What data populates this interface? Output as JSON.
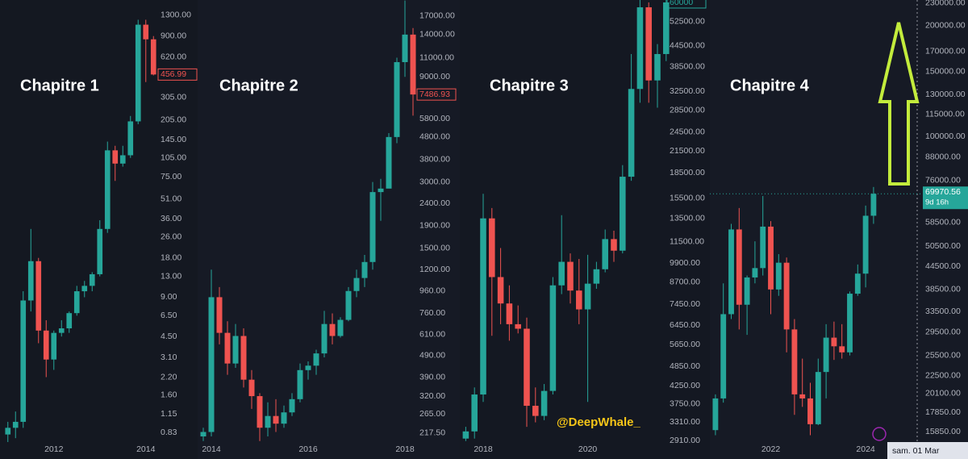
{
  "chart_data": [
    {
      "type": "candlestick",
      "title": "Chapitre 1",
      "log_scale": true,
      "up_color": "#26a69a",
      "down_color": "#ef5350",
      "categories": [
        null,
        null,
        null,
        null,
        null,
        null,
        "2012",
        null,
        null,
        null,
        null,
        null,
        null,
        null,
        null,
        null,
        null,
        null,
        "2014",
        null
      ],
      "open": [
        0.8,
        0.9,
        1.0,
        8.5,
        17,
        5,
        3,
        4.8,
        5.2,
        6.8,
        10,
        11,
        13.5,
        30,
        120,
        95,
        110,
        200,
        1100,
        850
      ],
      "high": [
        1.0,
        1.2,
        10,
        30,
        18,
        6,
        5,
        6,
        7,
        11,
        12,
        14,
        35,
        140,
        130,
        130,
        220,
        1200,
        1200,
        900
      ],
      "low": [
        0.7,
        0.75,
        0.9,
        7,
        4,
        2.2,
        2.5,
        4.5,
        4.8,
        6.5,
        9,
        10,
        13,
        28,
        70,
        90,
        105,
        190,
        400,
        450
      ],
      "close": [
        0.9,
        1.0,
        8.5,
        17,
        5,
        3,
        4.8,
        5.2,
        6.8,
        10,
        11,
        13.5,
        30,
        120,
        95,
        110,
        200,
        1100,
        850,
        456.99
      ],
      "ylim": [
        0.7,
        1700
      ],
      "yticks": [
        {
          "value": 1300,
          "label": "1300.00"
        },
        {
          "value": 900,
          "label": "900.00"
        },
        {
          "value": 620,
          "label": "620.00"
        },
        {
          "value": 305,
          "label": "305.00"
        },
        {
          "value": 205,
          "label": "205.00"
        },
        {
          "value": 145,
          "label": "145.00"
        },
        {
          "value": 105,
          "label": "105.00"
        },
        {
          "value": 75,
          "label": "75.00"
        },
        {
          "value": 51,
          "label": "51.00"
        },
        {
          "value": 36,
          "label": "36.00"
        },
        {
          "value": 26,
          "label": "26.00"
        },
        {
          "value": 18,
          "label": "18.00"
        },
        {
          "value": 13,
          "label": "13.00"
        },
        {
          "value": 9,
          "label": "9.00"
        },
        {
          "value": 6.5,
          "label": "6.50"
        },
        {
          "value": 4.5,
          "label": "4.50"
        },
        {
          "value": 3.1,
          "label": "3.10"
        },
        {
          "value": 2.2,
          "label": "2.20"
        },
        {
          "value": 1.6,
          "label": "1.60"
        },
        {
          "value": 1.15,
          "label": "1.15"
        },
        {
          "value": 0.83,
          "label": "0.83"
        }
      ]
    },
    {
      "type": "candlestick",
      "title": "Chapitre 2",
      "log_scale": true,
      "up_color": "#26a69a",
      "down_color": "#ef5350",
      "categories": [
        null,
        "2014",
        null,
        null,
        null,
        null,
        null,
        null,
        null,
        null,
        null,
        null,
        null,
        "2016",
        null,
        null,
        null,
        null,
        null,
        null,
        null,
        null,
        null,
        null,
        null,
        "2018",
        null
      ],
      "open": [
        210,
        220,
        900,
        620,
        450,
        600,
        380,
        320,
        230,
        260,
        240,
        270,
        310,
        420,
        440,
        500,
        680,
        600,
        710,
        960,
        1100,
        1300,
        2700,
        2800,
        4800,
        10500,
        14000
      ],
      "high": [
        230,
        1200,
        1000,
        700,
        680,
        650,
        420,
        330,
        300,
        310,
        290,
        330,
        450,
        460,
        520,
        780,
        760,
        730,
        1000,
        1200,
        1400,
        3000,
        3100,
        5000,
        11000,
        20000,
        15000
      ],
      "low": [
        200,
        210,
        550,
        400,
        430,
        350,
        280,
        200,
        210,
        220,
        230,
        260,
        300,
        380,
        400,
        480,
        550,
        590,
        700,
        900,
        1000,
        1200,
        2000,
        2900,
        4500,
        9000,
        6000
      ],
      "close": [
        220,
        900,
        620,
        450,
        600,
        380,
        320,
        230,
        260,
        240,
        270,
        310,
        420,
        440,
        500,
        680,
        600,
        710,
        960,
        1100,
        1300,
        2700,
        2800,
        4800,
        10500,
        14000,
        7486.93
      ],
      "ylim": [
        198,
        20100
      ],
      "yticks": [
        {
          "value": 17000,
          "label": "17000.00"
        },
        {
          "value": 14000,
          "label": "14000.00"
        },
        {
          "value": 11000,
          "label": "11000.00"
        },
        {
          "value": 9000,
          "label": "9000.00"
        },
        {
          "value": 5800,
          "label": "5800.00"
        },
        {
          "value": 4800,
          "label": "4800.00"
        },
        {
          "value": 3800,
          "label": "3800.00"
        },
        {
          "value": 3000,
          "label": "3000.00"
        },
        {
          "value": 2400,
          "label": "2400.00"
        },
        {
          "value": 1900,
          "label": "1900.00"
        },
        {
          "value": 1500,
          "label": "1500.00"
        },
        {
          "value": 1200,
          "label": "1200.00"
        },
        {
          "value": 960,
          "label": "960.00"
        },
        {
          "value": 760,
          "label": "760.00"
        },
        {
          "value": 610,
          "label": "610.00"
        },
        {
          "value": 490,
          "label": "490.00"
        },
        {
          "value": 390,
          "label": "390.00"
        },
        {
          "value": 320,
          "label": "320.00"
        },
        {
          "value": 265,
          "label": "265.00"
        },
        {
          "value": 217.5,
          "label": "217.50"
        }
      ]
    },
    {
      "type": "candlestick",
      "title": "Chapitre 3",
      "log_scale": true,
      "up_color": "#26a69a",
      "down_color": "#ef5350",
      "categories": [
        null,
        null,
        "2018",
        null,
        null,
        null,
        null,
        null,
        null,
        null,
        null,
        null,
        null,
        null,
        "2020",
        null,
        null,
        null,
        null,
        null,
        null,
        null,
        null,
        null
      ],
      "open": [
        2950,
        3100,
        4000,
        13500,
        9000,
        7500,
        6500,
        6300,
        3700,
        3450,
        4100,
        8500,
        10000,
        8200,
        7200,
        8600,
        9500,
        11700,
        10800,
        18000,
        33000,
        58000,
        35000,
        42000
      ],
      "high": [
        3200,
        4200,
        16000,
        14500,
        11000,
        8500,
        7400,
        6800,
        4200,
        4300,
        9000,
        13800,
        10600,
        10200,
        10500,
        10000,
        12500,
        12400,
        19500,
        42000,
        64000,
        60000,
        45000,
        62000
      ],
      "low": [
        2900,
        2950,
        3800,
        6000,
        6500,
        5800,
        6100,
        3200,
        3300,
        3350,
        4000,
        8000,
        7500,
        6500,
        3800,
        8300,
        9300,
        10000,
        10600,
        17500,
        30000,
        30000,
        29000,
        40000
      ],
      "close": [
        3100,
        4000,
        13500,
        9000,
        7500,
        6500,
        6300,
        3700,
        3450,
        4100,
        8500,
        10000,
        8200,
        7200,
        8600,
        9500,
        11700,
        10800,
        18000,
        33000,
        58000,
        35000,
        42000,
        60000
      ],
      "ylim": [
        2880,
        61000
      ],
      "yticks": [
        {
          "value": 52500,
          "label": "52500.00"
        },
        {
          "value": 44500,
          "label": "44500.00"
        },
        {
          "value": 38500,
          "label": "38500.00"
        },
        {
          "value": 32500,
          "label": "32500.00"
        },
        {
          "value": 28500,
          "label": "28500.00"
        },
        {
          "value": 24500,
          "label": "24500.00"
        },
        {
          "value": 21500,
          "label": "21500.00"
        },
        {
          "value": 18500,
          "label": "18500.00"
        },
        {
          "value": 15500,
          "label": "15500.00"
        },
        {
          "value": 13500,
          "label": "13500.00"
        },
        {
          "value": 11500,
          "label": "11500.00"
        },
        {
          "value": 9900,
          "label": "9900.00"
        },
        {
          "value": 8700,
          "label": "8700.00"
        },
        {
          "value": 7450,
          "label": "7450.00"
        },
        {
          "value": 6450,
          "label": "6450.00"
        },
        {
          "value": 5650,
          "label": "5650.00"
        },
        {
          "value": 4850,
          "label": "4850.00"
        },
        {
          "value": 4250,
          "label": "4250.00"
        },
        {
          "value": 3750,
          "label": "3750.00"
        },
        {
          "value": 3310,
          "label": "3310.00"
        },
        {
          "value": 2910,
          "label": "2910.00"
        }
      ]
    },
    {
      "type": "candlestick",
      "title": "Chapitre 4",
      "log_scale": true,
      "up_color": "#26a69a",
      "down_color": "#ef5350",
      "countdown": "9d 16h",
      "categories": [
        null,
        null,
        null,
        null,
        null,
        null,
        null,
        "2022",
        null,
        null,
        null,
        null,
        null,
        null,
        null,
        null,
        null,
        null,
        null,
        "2024",
        null
      ],
      "open": [
        16000,
        19500,
        33000,
        56000,
        35000,
        41500,
        44000,
        57000,
        38500,
        45500,
        30000,
        20000,
        19500,
        16600,
        23000,
        28500,
        27000,
        26000,
        37500,
        42500,
        61000
      ],
      "high": [
        20000,
        40000,
        58000,
        64000,
        42000,
        52000,
        69000,
        59000,
        48000,
        47000,
        32000,
        25000,
        21500,
        25000,
        31000,
        31500,
        31000,
        38000,
        45000,
        65000,
        73000
      ],
      "low": [
        15500,
        19000,
        32000,
        30000,
        29000,
        40000,
        42000,
        33000,
        37000,
        26000,
        17600,
        18500,
        15500,
        16500,
        19500,
        24800,
        25000,
        25500,
        37000,
        39000,
        58000
      ],
      "close": [
        19500,
        33000,
        56000,
        35000,
        41500,
        44000,
        57000,
        38500,
        45500,
        30000,
        20000,
        19500,
        16600,
        23000,
        28500,
        27000,
        26000,
        37500,
        42500,
        61000,
        69970.56
      ],
      "ylim": [
        14850,
        234600
      ],
      "yticks": [
        {
          "value": 230000,
          "label": "230000.00"
        },
        {
          "value": 200000,
          "label": "200000.00"
        },
        {
          "value": 170000,
          "label": "170000.00"
        },
        {
          "value": 150000,
          "label": "150000.00"
        },
        {
          "value": 130000,
          "label": "130000.00"
        },
        {
          "value": 115000,
          "label": "115000.00"
        },
        {
          "value": 100000,
          "label": "100000.00"
        },
        {
          "value": 88000,
          "label": "88000.00"
        },
        {
          "value": 76000,
          "label": "76000.00"
        },
        {
          "value": 58500,
          "label": "58500.00"
        },
        {
          "value": 50500,
          "label": "50500.00"
        },
        {
          "value": 44500,
          "label": "44500.00"
        },
        {
          "value": 38500,
          "label": "38500.00"
        },
        {
          "value": 33500,
          "label": "33500.00"
        },
        {
          "value": 29500,
          "label": "29500.00"
        },
        {
          "value": 25500,
          "label": "25500.00"
        },
        {
          "value": 22500,
          "label": "22500.00"
        },
        {
          "value": 20100,
          "label": "20100.00"
        },
        {
          "value": 17850,
          "label": "17850.00"
        },
        {
          "value": 15850,
          "label": "15850.00"
        }
      ]
    }
  ],
  "watermark": "@DeepWhale_",
  "crosshair_date": "sam. 01 Mar"
}
